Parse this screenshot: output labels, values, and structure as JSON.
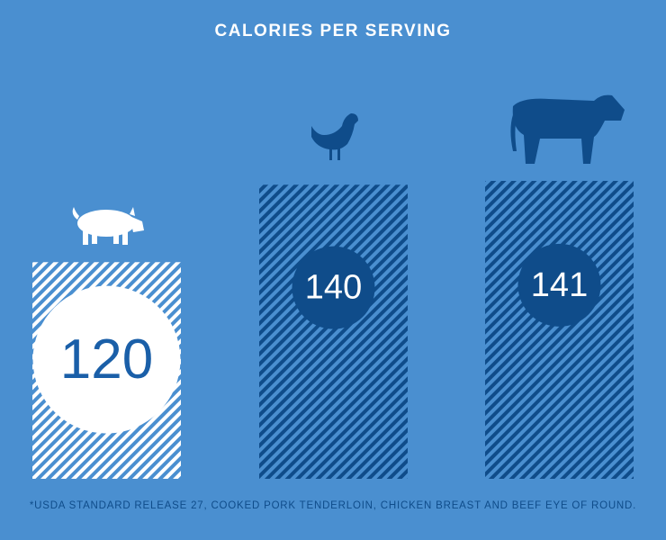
{
  "chart_data": {
    "type": "bar",
    "title": "CALORIES PER SERVING",
    "categories": [
      null,
      null,
      null
    ],
    "values": [
      120,
      140,
      141
    ],
    "colors": [
      "#ffffff",
      "#0f4c8a",
      "#0f4c8a"
    ],
    "ylim": [
      64,
      141
    ],
    "note": "*USDA STANDARD RELEASE 27, COOKED PORK TENDERLOIN, CHICKEN BREAST AND BEEF EYE OF ROUND."
  }
}
